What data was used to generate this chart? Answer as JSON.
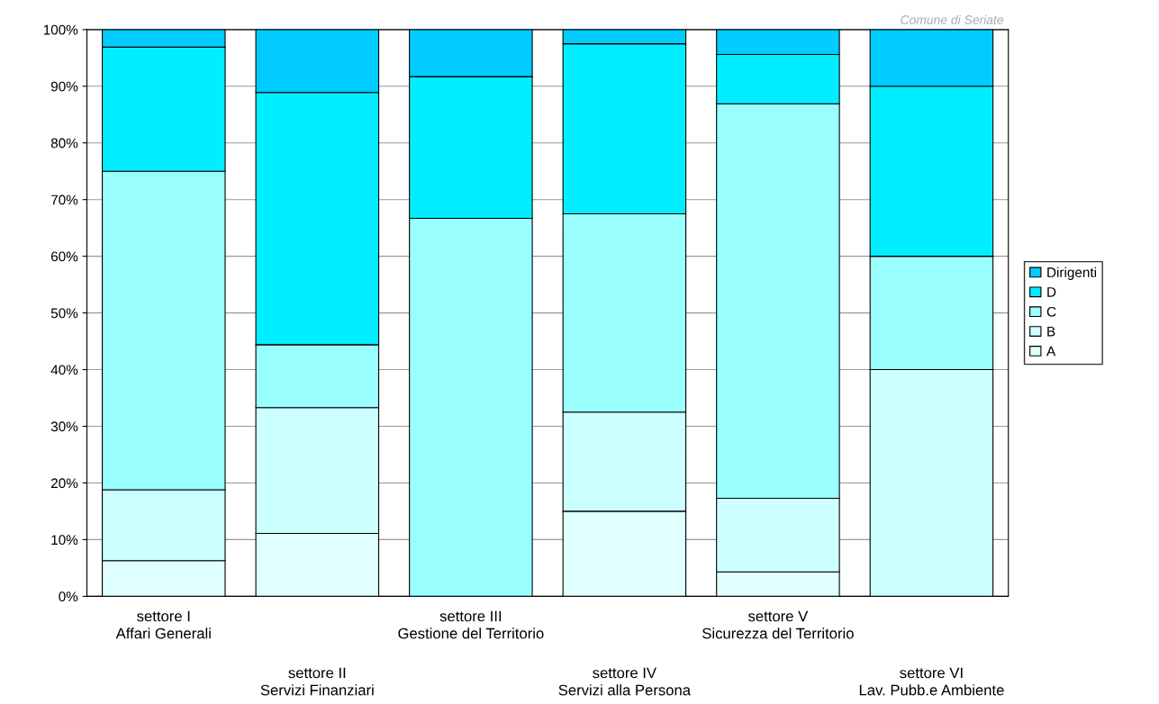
{
  "chart_data": {
    "type": "bar",
    "stacked": true,
    "categories": [
      "settore I\nAffari Generali",
      "settore II\nServizi Finanziari",
      "settore III\nGestione del Territorio",
      "settore IV\nServizi alla Persona",
      "settore V\nSicurezza del Territorio",
      "settore VI\nLav. Pubb.e Ambiente"
    ],
    "series": [
      {
        "name": "A",
        "color": "#e0ffff",
        "values": [
          6.3,
          11.1,
          0,
          15,
          4.3,
          0
        ]
      },
      {
        "name": "B",
        "color": "#ccffff",
        "values": [
          12.5,
          22.2,
          0,
          17.5,
          13.0,
          40
        ]
      },
      {
        "name": "C",
        "color": "#99ffff",
        "values": [
          56.2,
          11.1,
          66.7,
          35,
          69.6,
          20
        ]
      },
      {
        "name": "D",
        "color": "#00eeff",
        "values": [
          21.9,
          44.5,
          25,
          30,
          8.7,
          30
        ]
      },
      {
        "name": "Dirigenti",
        "color": "#00ccff",
        "values": [
          3.1,
          11.1,
          8.3,
          2.5,
          4.4,
          10
        ]
      }
    ],
    "ylim": [
      0,
      100
    ],
    "yticks": [
      {
        "value": 0,
        "label": "0%"
      },
      {
        "value": 10,
        "label": "10%"
      },
      {
        "value": 20,
        "label": "20%"
      },
      {
        "value": 30,
        "label": "30%"
      },
      {
        "value": 40,
        "label": "40%"
      },
      {
        "value": 50,
        "label": "50%"
      },
      {
        "value": 60,
        "label": "60%"
      },
      {
        "value": 70,
        "label": "70%"
      },
      {
        "value": 80,
        "label": "80%"
      },
      {
        "value": 90,
        "label": "90%"
      },
      {
        "value": 100,
        "label": "100%"
      }
    ],
    "grid": "y",
    "legend": "right",
    "annotations": [
      "Comune di Seriate"
    ]
  }
}
